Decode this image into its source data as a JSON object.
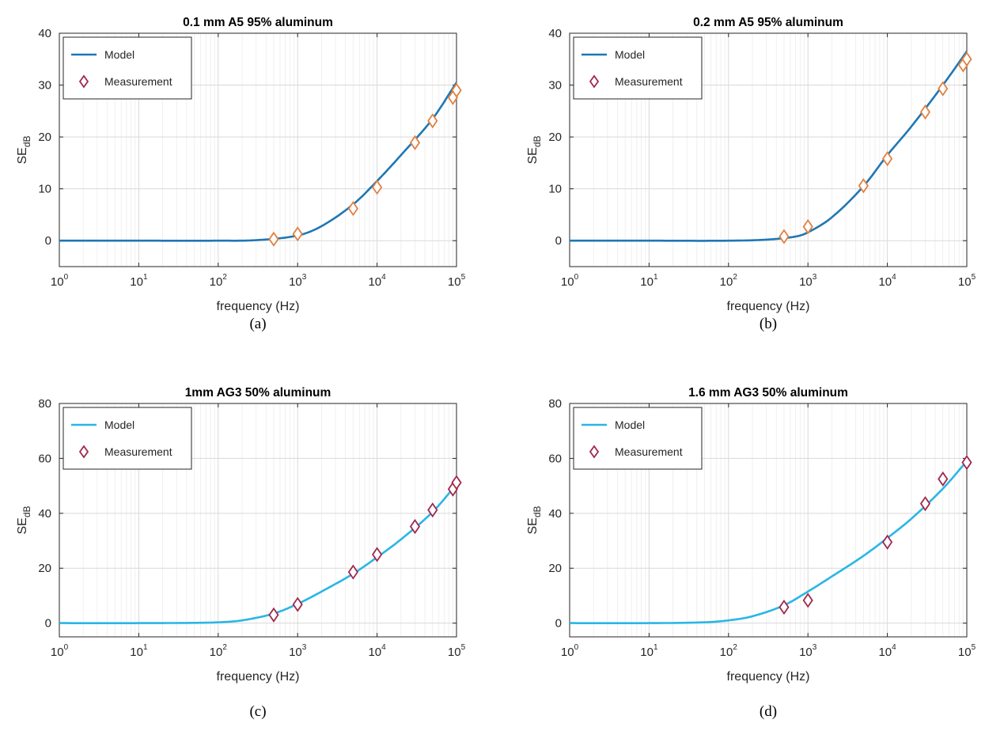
{
  "chart_data": [
    {
      "type": "line",
      "title": "0.1 mm A5 95% aluminum",
      "caption": "(a)",
      "xlabel": "frequency (Hz)",
      "ylabel_main": "SE",
      "ylabel_sub": "dB",
      "x_scale": "log",
      "xlim": [
        1,
        100000
      ],
      "ylim": [
        -5,
        40
      ],
      "yticks": [
        "0",
        "10",
        "20",
        "30",
        "40"
      ],
      "grid": true,
      "legend_position": "top-left",
      "series": [
        {
          "name": "Model",
          "kind": "line",
          "color": "#1f77b4",
          "x": [
            1,
            10,
            100,
            300,
            1000,
            2000,
            5000,
            10000,
            20000,
            50000,
            100000
          ],
          "y": [
            0,
            0,
            0,
            0.1,
            1.0,
            2.8,
            7.0,
            11.5,
            16.5,
            23.5,
            30.5
          ]
        },
        {
          "name": "Measurement",
          "kind": "marker",
          "color": "#e08040",
          "x": [
            500,
            1000,
            5000,
            10000,
            30000,
            50000,
            90000,
            100000
          ],
          "y": [
            0.3,
            1.3,
            6.2,
            10.3,
            18.9,
            23.1,
            27.6,
            29.0
          ]
        }
      ]
    },
    {
      "type": "line",
      "title": "0.2 mm A5 95% aluminum",
      "caption": "(b)",
      "xlabel": "frequency (Hz)",
      "ylabel_main": "SE",
      "ylabel_sub": "dB",
      "x_scale": "log",
      "xlim": [
        1,
        100000
      ],
      "ylim": [
        -5,
        40
      ],
      "yticks": [
        "0",
        "10",
        "20",
        "30",
        "40"
      ],
      "grid": true,
      "legend_position": "top-left",
      "series": [
        {
          "name": "Model",
          "kind": "line",
          "color": "#1f77b4",
          "x": [
            1,
            10,
            100,
            300,
            700,
            1000,
            2000,
            5000,
            10000,
            20000,
            50000,
            100000
          ],
          "y": [
            0,
            0,
            0,
            0.2,
            0.8,
            1.6,
            4.5,
            10.5,
            16.5,
            22.0,
            30.0,
            36.5
          ]
        },
        {
          "name": "Measurement",
          "kind": "marker",
          "color": "#e08040",
          "x": [
            500,
            1000,
            5000,
            10000,
            30000,
            50000,
            90000,
            100000
          ],
          "y": [
            0.8,
            2.7,
            10.6,
            15.8,
            24.8,
            29.3,
            33.9,
            35.0
          ]
        }
      ]
    },
    {
      "type": "line",
      "title": "1mm AG3 50% aluminum",
      "caption": "(c)",
      "xlabel": "frequency (Hz)",
      "ylabel_main": "SE",
      "ylabel_sub": "dB",
      "x_scale": "log",
      "xlim": [
        1,
        100000
      ],
      "ylim": [
        -5,
        80
      ],
      "yticks": [
        "0",
        "20",
        "40",
        "60",
        "80"
      ],
      "grid": true,
      "legend_position": "top-left",
      "series": [
        {
          "name": "Model",
          "kind": "line",
          "color": "#29b6e6",
          "x": [
            1,
            10,
            50,
            100,
            200,
            500,
            1000,
            2000,
            5000,
            10000,
            20000,
            50000,
            100000
          ],
          "y": [
            0,
            0,
            0.1,
            0.3,
            1.0,
            3.5,
            7.0,
            11.5,
            18.0,
            24.0,
            30.5,
            40.5,
            50.5
          ]
        },
        {
          "name": "Measurement",
          "kind": "marker",
          "color": "#a0284a",
          "x": [
            500,
            1000,
            5000,
            10000,
            30000,
            50000,
            90000,
            100000
          ],
          "y": [
            3.0,
            6.8,
            18.6,
            25.0,
            35.2,
            41.2,
            48.8,
            51.2
          ]
        }
      ]
    },
    {
      "type": "line",
      "title": "1.6 mm AG3 50% aluminum",
      "caption": "(d)",
      "xlabel": "frequency (Hz)",
      "ylabel_main": "SE",
      "ylabel_sub": "dB",
      "x_scale": "log",
      "xlim": [
        1,
        100000
      ],
      "ylim": [
        -5,
        80
      ],
      "yticks": [
        "0",
        "20",
        "40",
        "60",
        "80"
      ],
      "grid": true,
      "legend_position": "top-left",
      "series": [
        {
          "name": "Model",
          "kind": "line",
          "color": "#29b6e6",
          "x": [
            1,
            10,
            50,
            100,
            200,
            500,
            1000,
            2000,
            5000,
            10000,
            20000,
            50000,
            100000
          ],
          "y": [
            0,
            0,
            0.3,
            1.0,
            2.5,
            6.5,
            11.5,
            17.0,
            24.5,
            31.0,
            38.0,
            49.0,
            59.0
          ]
        },
        {
          "name": "Measurement",
          "kind": "marker",
          "color": "#a0284a",
          "x": [
            500,
            1000,
            10000,
            30000,
            50000,
            100000
          ],
          "y": [
            5.8,
            8.3,
            29.5,
            43.5,
            52.5,
            58.5
          ]
        }
      ]
    }
  ]
}
